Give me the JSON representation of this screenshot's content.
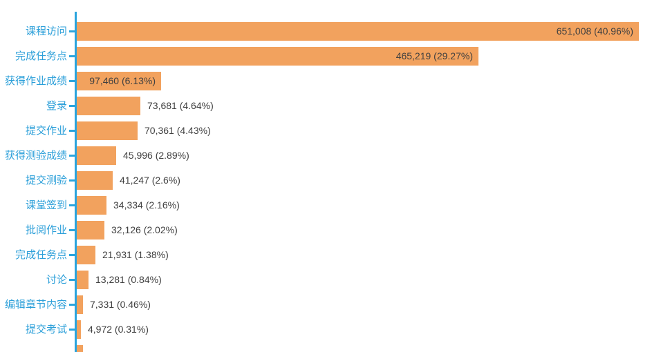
{
  "chart_data": {
    "type": "bar",
    "orientation": "horizontal",
    "title": "",
    "xlabel": "",
    "ylabel": "",
    "grid": false,
    "legend": false,
    "categories": [
      "课程访问",
      "完成任务点",
      "获得作业成绩",
      "登录",
      "提交作业",
      "获得测验成绩",
      "提交测验",
      "课堂签到",
      "批阅作业",
      "完成任务点",
      "讨论",
      "编辑章节内容",
      "提交考试"
    ],
    "values": [
      651008,
      465219,
      97460,
      73681,
      70361,
      45996,
      41247,
      34334,
      32126,
      21931,
      13281,
      7331,
      4972
    ],
    "percents": [
      40.96,
      29.27,
      6.13,
      4.64,
      4.43,
      2.89,
      2.6,
      2.16,
      2.02,
      1.38,
      0.84,
      0.46,
      0.31
    ],
    "data_labels": [
      "651,008 (40.96%)",
      "465,219 (29.27%)",
      "97,460 (6.13%)",
      "73,681 (4.64%)",
      "70,361 (4.43%)",
      "45,996 (2.89%)",
      "41,247 (2.6%)",
      "34,334 (2.16%)",
      "32,126 (2.02%)",
      "21,931 (1.38%)",
      "13,281 (0.84%)",
      "7,331 (0.46%)",
      "4,972 (0.31%)"
    ],
    "max_value_shown": 651008,
    "extra_clipped_bar_at_bottom": true
  },
  "colors": {
    "bar": "#f2a25e",
    "axis": "#2aa4dd",
    "category_label": "#2b9fd9",
    "value_label": "#404040",
    "background": "#ffffff"
  }
}
